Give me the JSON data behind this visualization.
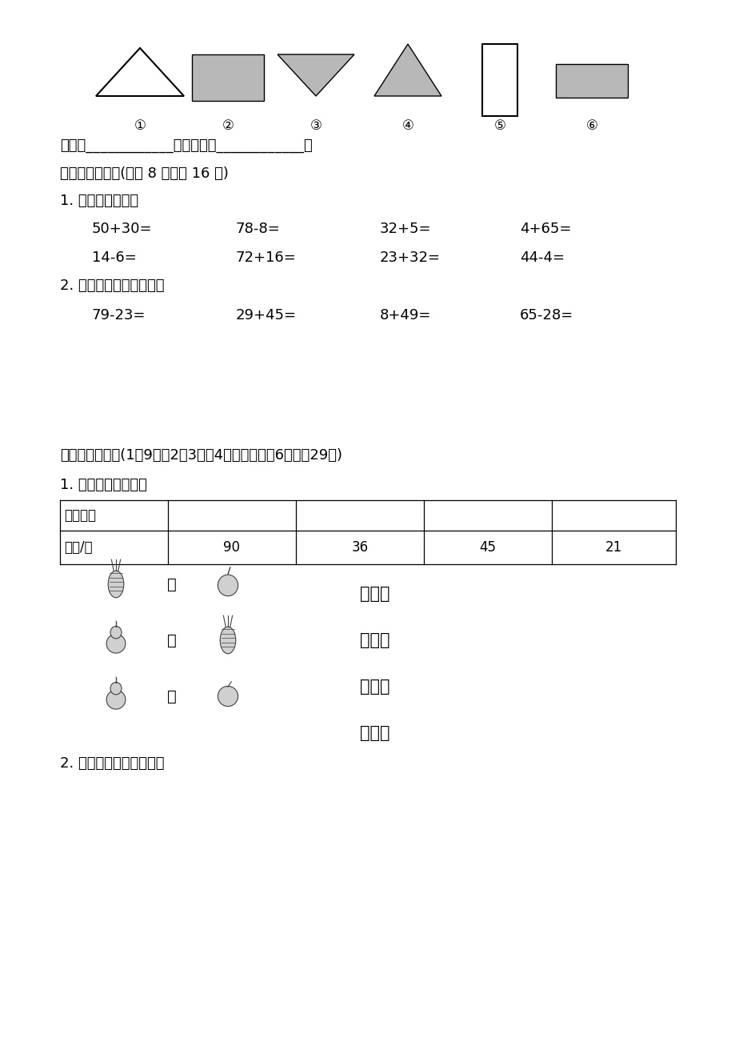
{
  "bg_color": "#ffffff",
  "section6_title": "六、计算园地。(每题 8 分，共 16 分)",
  "section6_sub1": "1. 直接写出得数。",
  "row1_eqs": [
    "50+30=",
    "78-8=",
    "32+5=",
    "4+65="
  ],
  "row2_eqs": [
    "14-6=",
    "72+16=",
    "23+32=",
    "44-4="
  ],
  "section6_sub2": "2. 用竖式计算下面各题。",
  "row3_eqs": [
    "79-23=",
    "29+45=",
    "8+49=",
    "65-28="
  ],
  "section7_title": "七、解决问题。(1题9分，2、3题各4分，其余每题6分，共29分)",
  "section7_sub1": "1. 选一选，连一连。",
  "table_row0": [
    "水果种类",
    "",
    "",
    "",
    ""
  ],
  "table_row1": [
    "数量/个",
    "90",
    "36",
    "45",
    "21"
  ],
  "bi_label": "比",
  "comparison_right": [
    "多一些",
    "多得多",
    "少一些",
    "少得多"
  ],
  "section7_sub2": "2. 一个羽毛球拍多少元？",
  "classify_text": "一类是____________；另一类是____________。",
  "shape_labels": [
    "①",
    "②",
    "③",
    "④",
    "⑤",
    "⑥"
  ],
  "gray_color": "#b8b8b8",
  "dark_gray": "#909090"
}
